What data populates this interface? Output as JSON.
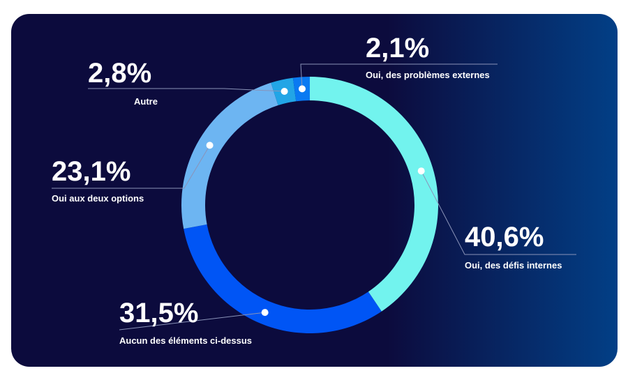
{
  "chart_data": {
    "type": "pie",
    "series": [
      {
        "label": "Oui, des défis internes",
        "value": 40.6,
        "display": "40,6%",
        "color": "#72F3EE"
      },
      {
        "label": "Aucun des éléments ci-dessus",
        "value": 31.5,
        "display": "31,5%",
        "color": "#0055F5"
      },
      {
        "label": "Oui aux deux options",
        "value": 23.1,
        "display": "23,1%",
        "color": "#6DB5F2"
      },
      {
        "label": "Autre",
        "value": 2.8,
        "display": "2,8%",
        "color": "#22A5E6"
      },
      {
        "label": "Oui, des problèmes externes",
        "value": 2.1,
        "display": "2,1%",
        "color": "#0A7AF2"
      }
    ],
    "legend": "callouts",
    "start_angle": "top, clockwise"
  },
  "colors": {
    "card_left": "#0C0B3D",
    "card_right": "#023F86",
    "leader_line": "#8A93B8",
    "dot": "#ffffff",
    "text": "#ffffff"
  }
}
